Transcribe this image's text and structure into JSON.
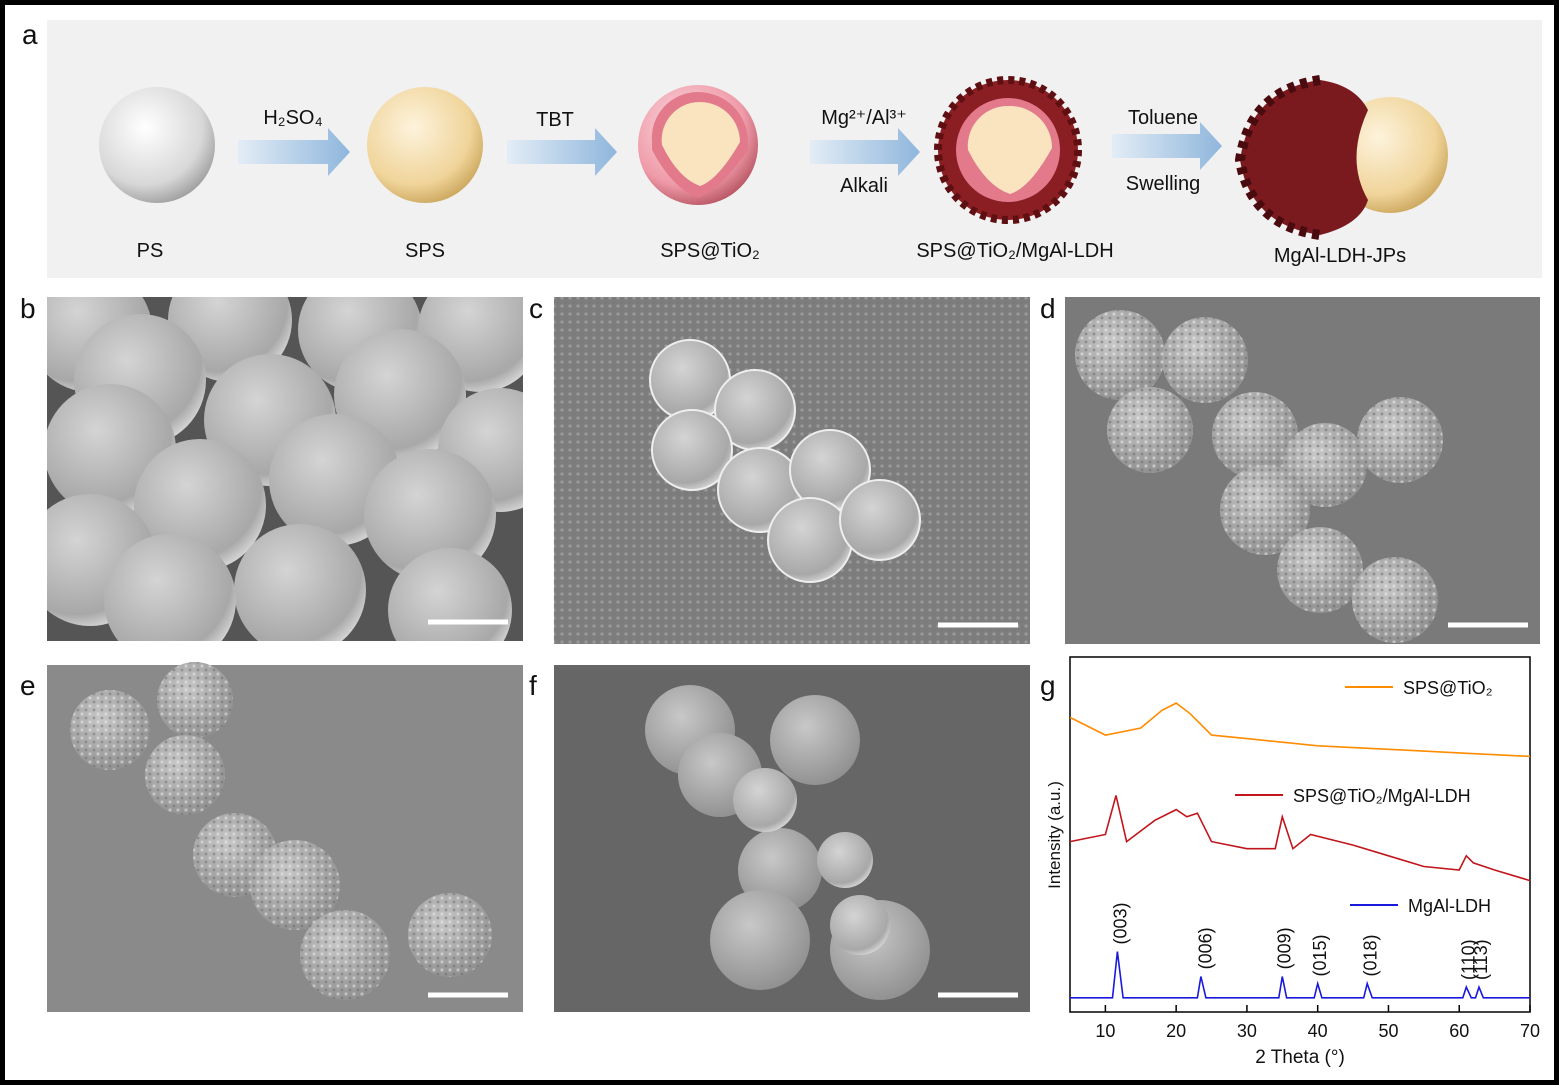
{
  "panel_labels": [
    "a",
    "b",
    "c",
    "d",
    "e",
    "f",
    "g"
  ],
  "scheme": {
    "arrows": [
      {
        "top": "H₂SO₄",
        "bottom": null
      },
      {
        "top": "TBT",
        "bottom": null
      },
      {
        "top": "Mg²⁺/Al³⁺",
        "bottom": "Alkali"
      },
      {
        "top": "Toluene",
        "bottom": "Swelling"
      }
    ],
    "labels": [
      "PS",
      "SPS",
      "SPS@TiO₂",
      "SPS@TiO₂/MgAl-LDH",
      "MgAl-LDH-JPs"
    ]
  },
  "chart_data": {
    "type": "line",
    "xlabel": "2 Theta (°)",
    "ylabel": "Intensity (a.u.)",
    "xlim": [
      5,
      70
    ],
    "ylim": [
      0,
      100
    ],
    "xticks": [
      10,
      20,
      30,
      40,
      50,
      60,
      70
    ],
    "series": [
      {
        "name": "SPS@TiO₂",
        "color": "#ff8c00",
        "x": [
          5,
          10,
          15,
          18,
          20,
          22,
          25,
          30,
          40,
          50,
          60,
          70
        ],
        "values": [
          83,
          78,
          80,
          85,
          87,
          84,
          78,
          77,
          75,
          74,
          73,
          72
        ]
      },
      {
        "name": "SPS@TiO₂/MgAl-LDH",
        "color": "#c0161c",
        "x": [
          5,
          10,
          11.5,
          13,
          17,
          20,
          21.5,
          23,
          25,
          30,
          34,
          35,
          36.5,
          39,
          45,
          50,
          55,
          60,
          61,
          62,
          65,
          70
        ],
        "values": [
          48,
          50,
          61,
          48,
          54,
          57,
          55,
          56,
          48,
          46,
          46,
          55,
          46,
          50,
          47,
          44,
          41,
          40,
          44,
          42,
          40,
          37
        ]
      },
      {
        "name": "MgAl-LDH",
        "color": "#1a1adc",
        "x": [
          5,
          11,
          11.7,
          12.5,
          23,
          23.5,
          24.2,
          34.5,
          35,
          35.6,
          39.5,
          40,
          40.6,
          46.5,
          47,
          47.7,
          60.5,
          61,
          61.7,
          62.3,
          62.8,
          63.4,
          70
        ],
        "values": [
          4,
          4,
          17,
          4,
          4,
          10,
          4,
          4,
          10,
          4,
          4,
          8,
          4,
          4,
          8,
          4,
          4,
          7,
          4,
          4,
          7,
          4,
          4
        ]
      }
    ],
    "annotations": [
      {
        "text": "(003)",
        "x": 12,
        "y": 19
      },
      {
        "text": "(006)",
        "x": 24,
        "y": 12
      },
      {
        "text": "(009)",
        "x": 35.2,
        "y": 12
      },
      {
        "text": "(015)",
        "x": 40.2,
        "y": 10
      },
      {
        "text": "(018)",
        "x": 47.3,
        "y": 10
      },
      {
        "text": "(110)",
        "x": 61.2,
        "y": 9
      },
      {
        "text": "(113)",
        "x": 62.9,
        "y": 9
      }
    ]
  }
}
